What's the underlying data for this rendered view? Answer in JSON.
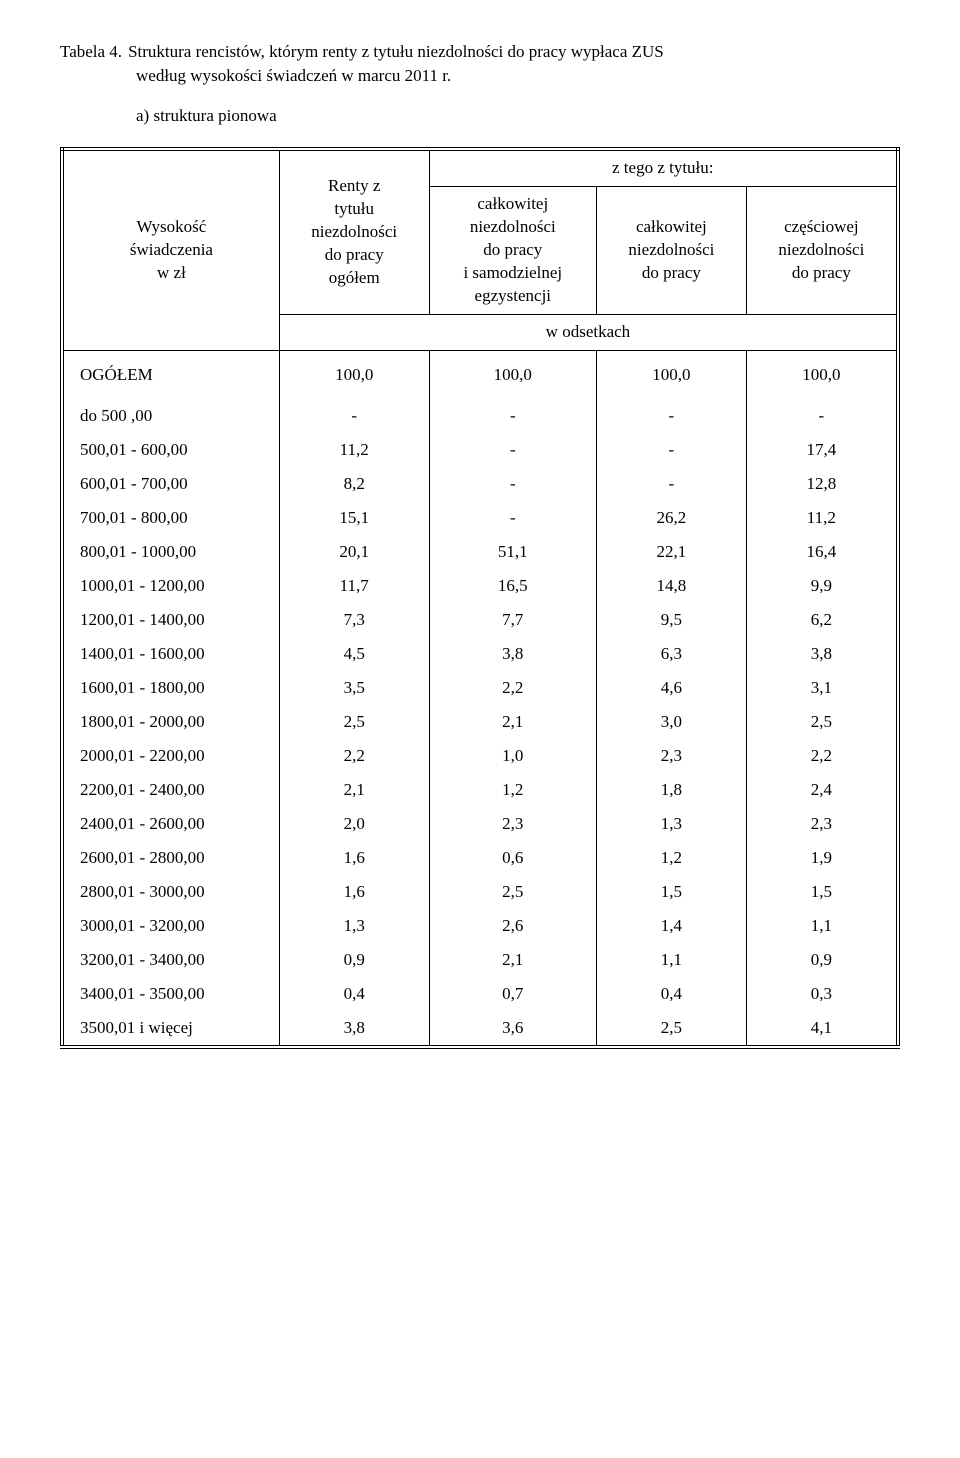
{
  "title": {
    "label": "Tabela 4.",
    "line1": "Struktura  rencistów, którym renty z tytułu niezdolności do pracy wypłaca ZUS",
    "line2": "według wysokości  świadczeń w marcu 2011 r.",
    "subtitle": "a) struktura pionowa"
  },
  "header": {
    "col1": "Wysokość\nświadczenia\nw zł",
    "col2": "Renty z\ntytułu\nniezdolności\ndo pracy\nogółem",
    "top_right": "z tego z tytułu:",
    "sub1": "całkowitej\nniezdolności\ndo pracy\ni samodzielnej\negzystencji",
    "sub2": "całkowitej\nniezdolności\ndo pracy",
    "sub3": "częściowej\nniezdolności\ndo pracy",
    "unit_row": "w odsetkach"
  },
  "totals": {
    "label": "OGÓŁEM",
    "v1": "100,0",
    "v2": "100,0",
    "v3": "100,0",
    "v4": "100,0"
  },
  "rows": [
    {
      "label": "do 500 ,00",
      "v1": "-",
      "v2": "-",
      "v3": "-",
      "v4": "-"
    },
    {
      "label": "500,01 -  600,00",
      "v1": "11,2",
      "v2": "-",
      "v3": "-",
      "v4": "17,4"
    },
    {
      "label": "600,01 -  700,00",
      "v1": "8,2",
      "v2": "-",
      "v3": "-",
      "v4": "12,8"
    },
    {
      "label": "700,01 -  800,00",
      "v1": "15,1",
      "v2": "-",
      "v3": "26,2",
      "v4": "11,2"
    },
    {
      "label": "800,01 -  1000,00",
      "v1": "20,1",
      "v2": "51,1",
      "v3": "22,1",
      "v4": "16,4"
    },
    {
      "label": "1000,01 -  1200,00",
      "v1": "11,7",
      "v2": "16,5",
      "v3": "14,8",
      "v4": "9,9"
    },
    {
      "label": "1200,01 -  1400,00",
      "v1": "7,3",
      "v2": "7,7",
      "v3": "9,5",
      "v4": "6,2"
    },
    {
      "label": "1400,01 -  1600,00",
      "v1": "4,5",
      "v2": "3,8",
      "v3": "6,3",
      "v4": "3,8"
    },
    {
      "label": "1600,01 -  1800,00",
      "v1": "3,5",
      "v2": "2,2",
      "v3": "4,6",
      "v4": "3,1"
    },
    {
      "label": "1800,01 -  2000,00",
      "v1": "2,5",
      "v2": "2,1",
      "v3": "3,0",
      "v4": "2,5"
    },
    {
      "label": "2000,01 -  2200,00",
      "v1": "2,2",
      "v2": "1,0",
      "v3": "2,3",
      "v4": "2,2"
    },
    {
      "label": "2200,01 -  2400,00",
      "v1": "2,1",
      "v2": "1,2",
      "v3": "1,8",
      "v4": "2,4"
    },
    {
      "label": "2400,01 -  2600,00",
      "v1": "2,0",
      "v2": "2,3",
      "v3": "1,3",
      "v4": "2,3"
    },
    {
      "label": "2600,01 -  2800,00",
      "v1": "1,6",
      "v2": "0,6",
      "v3": "1,2",
      "v4": "1,9"
    },
    {
      "label": "2800,01 -  3000,00",
      "v1": "1,6",
      "v2": "2,5",
      "v3": "1,5",
      "v4": "1,5"
    },
    {
      "label": "3000,01 -  3200,00",
      "v1": "1,3",
      "v2": "2,6",
      "v3": "1,4",
      "v4": "1,1"
    },
    {
      "label": "3200,01 -  3400,00",
      "v1": "0,9",
      "v2": "2,1",
      "v3": "1,1",
      "v4": "0,9"
    },
    {
      "label": "3400,01 -  3500,00",
      "v1": "0,4",
      "v2": "0,7",
      "v3": "0,4",
      "v4": "0,3"
    },
    {
      "label": "3500,01 i więcej",
      "v1": "3,8",
      "v2": "3,6",
      "v3": "2,5",
      "v4": "4,1"
    }
  ],
  "style": {
    "font_family": "Times New Roman",
    "font_size_pt": 13,
    "text_color": "#000000",
    "background_color": "#ffffff",
    "border_color": "#000000"
  }
}
